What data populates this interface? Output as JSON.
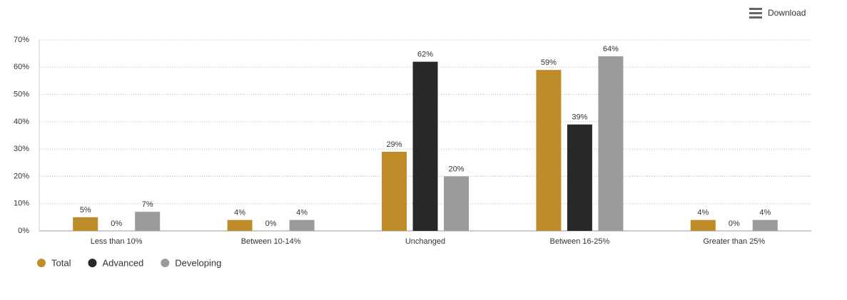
{
  "toolbar": {
    "download": "Download"
  },
  "chart_data": {
    "type": "bar",
    "categories": [
      "Less than 10%",
      "Between 10-14%",
      "Unchanged",
      "Between 16-25%",
      "Greater than 25%"
    ],
    "series": [
      {
        "name": "Total",
        "color": "#bf8c2a",
        "values": [
          5,
          4,
          29,
          59,
          4
        ],
        "value_labels": [
          "5%",
          "4%",
          "29%",
          "59%",
          "4%"
        ]
      },
      {
        "name": "Advanced",
        "color": "#282828",
        "values": [
          0,
          0,
          62,
          39,
          0
        ],
        "value_labels": [
          "0%",
          "0%",
          "62%",
          "39%",
          "0%"
        ]
      },
      {
        "name": "Developing",
        "color": "#9b9b9b",
        "values": [
          7,
          4,
          20,
          64,
          4
        ],
        "value_labels": [
          "7%",
          "4%",
          "20%",
          "64%",
          "4%"
        ]
      }
    ],
    "ylim": [
      0,
      70
    ],
    "yticks": [
      {
        "value": 0,
        "label": "0%"
      },
      {
        "value": 10,
        "label": "10%"
      },
      {
        "value": 20,
        "label": "20%"
      },
      {
        "value": 30,
        "label": "30%"
      },
      {
        "value": 40,
        "label": "40%"
      },
      {
        "value": 50,
        "label": "50%"
      },
      {
        "value": 60,
        "label": "60%"
      },
      {
        "value": 70,
        "label": "70%"
      }
    ],
    "grid": true
  }
}
